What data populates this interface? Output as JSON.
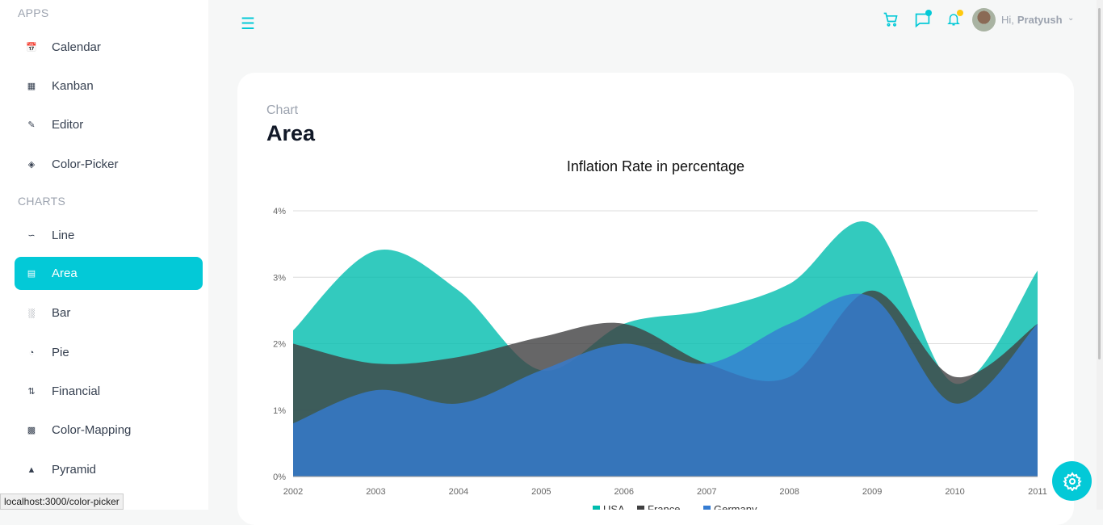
{
  "sidebar": {
    "sections": [
      {
        "label": "APPS"
      },
      {
        "label": "CHARTS"
      }
    ],
    "apps": [
      {
        "label": "Calendar",
        "icon": "calendar-icon"
      },
      {
        "label": "Kanban",
        "icon": "kanban-icon"
      },
      {
        "label": "Editor",
        "icon": "edit-icon"
      },
      {
        "label": "Color-Picker",
        "icon": "paint-bucket-icon"
      }
    ],
    "charts": [
      {
        "label": "Line",
        "icon": "line-chart-icon"
      },
      {
        "label": "Area",
        "icon": "area-chart-icon",
        "active": true
      },
      {
        "label": "Bar",
        "icon": "bar-chart-icon"
      },
      {
        "label": "Pie",
        "icon": "pie-chart-icon"
      },
      {
        "label": "Financial",
        "icon": "financial-icon"
      },
      {
        "label": "Color-Mapping",
        "icon": "color-mapping-icon"
      },
      {
        "label": "Pyramid",
        "icon": "pyramid-icon"
      }
    ]
  },
  "header": {
    "greeting": "Hi,",
    "user": "Pratyush"
  },
  "page": {
    "category": "Chart",
    "title": "Area"
  },
  "status_url": "localhost:3000/color-picker",
  "colors": {
    "accent": "#03c9d7",
    "usa": "#00bdae",
    "france": "#404041",
    "germany": "#357cd2"
  },
  "chart_data": {
    "type": "area",
    "title": "Inflation Rate in percentage",
    "categories": [
      "2002",
      "2003",
      "2004",
      "2005",
      "2006",
      "2007",
      "2008",
      "2009",
      "2010",
      "2011"
    ],
    "ylim": [
      0,
      4
    ],
    "yticks": [
      "0%",
      "1%",
      "2%",
      "3%",
      "4%"
    ],
    "series": [
      {
        "name": "USA",
        "values": [
          2.2,
          3.4,
          2.8,
          1.6,
          2.3,
          2.5,
          2.9,
          3.8,
          1.4,
          3.1
        ]
      },
      {
        "name": "France",
        "values": [
          2.0,
          1.7,
          1.8,
          2.1,
          2.3,
          1.7,
          1.5,
          2.8,
          1.5,
          2.3
        ]
      },
      {
        "name": "Germany",
        "values": [
          0.8,
          1.3,
          1.1,
          1.6,
          2.0,
          1.7,
          2.3,
          2.7,
          1.1,
          2.3
        ]
      }
    ],
    "legend": "bottom"
  }
}
